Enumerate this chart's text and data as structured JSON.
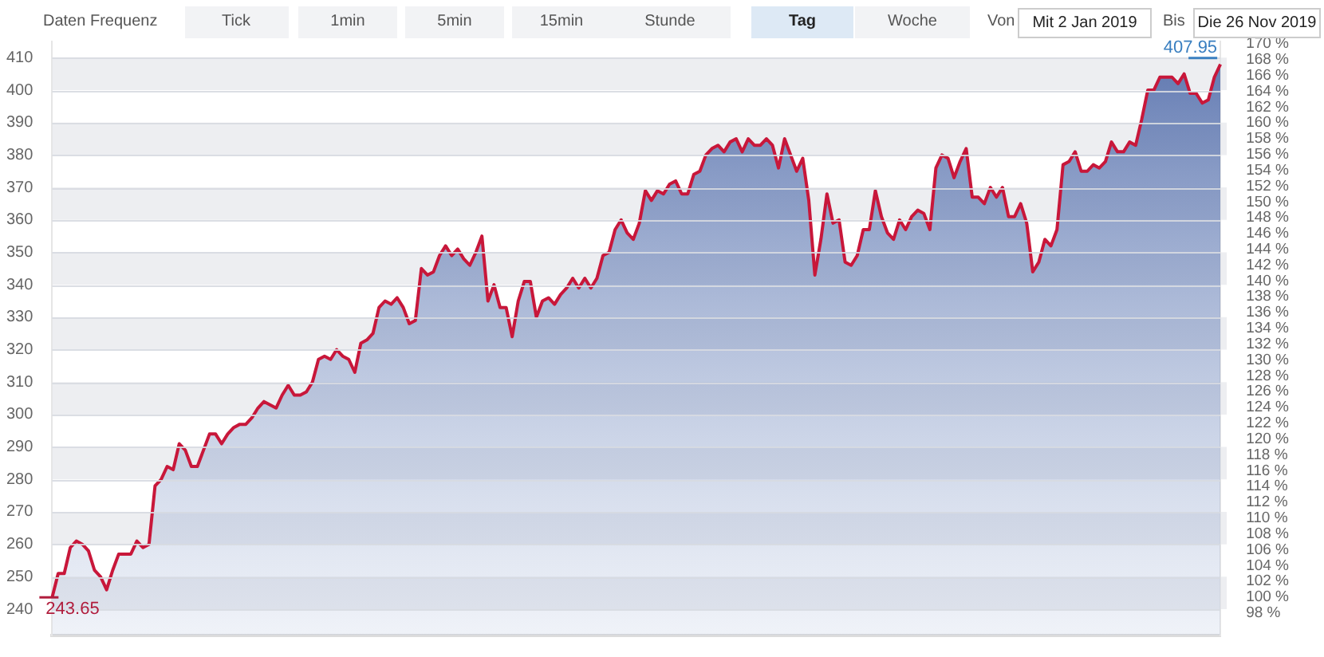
{
  "chart_data": [
    {
      "type": "area",
      "categories": [
        null,
        null,
        null,
        null,
        null,
        null,
        null,
        null,
        null,
        null,
        null,
        null,
        null,
        null,
        null,
        null,
        null,
        null,
        null,
        null,
        null,
        null,
        null,
        null,
        null,
        null,
        null,
        null,
        null,
        null,
        null,
        null,
        null,
        null,
        null,
        null,
        null,
        null,
        null,
        null,
        null,
        null,
        null,
        null,
        null,
        null,
        null,
        null,
        null,
        null,
        null,
        null,
        null,
        null,
        null,
        null,
        null,
        null,
        null,
        null,
        null,
        null,
        null,
        null,
        null,
        null,
        null,
        null,
        null,
        null,
        null,
        null,
        null,
        null,
        null,
        null,
        null,
        null,
        null,
        null,
        null,
        null,
        null,
        null,
        null,
        null,
        null,
        null,
        null,
        null,
        null,
        null,
        null,
        null,
        null,
        null,
        null,
        null,
        null,
        null,
        null,
        null,
        null,
        null,
        null,
        null,
        null,
        null,
        null,
        null,
        null,
        null,
        null,
        null,
        null,
        null,
        null,
        null,
        null,
        null,
        null,
        null,
        null,
        null,
        null,
        null,
        null,
        null,
        null,
        null,
        null,
        null,
        null,
        null,
        null,
        null,
        null,
        null,
        null,
        null,
        null,
        null,
        null,
        null,
        null,
        null,
        null,
        null,
        null,
        null,
        null,
        null,
        null,
        null,
        null,
        null,
        null,
        null,
        null,
        null,
        null,
        null,
        null,
        null,
        null,
        null,
        null,
        null,
        null,
        null,
        null,
        null,
        null,
        null,
        null,
        null,
        null,
        null,
        null,
        null,
        null,
        null,
        null,
        null,
        null,
        null,
        null,
        null,
        null,
        null,
        null,
        null,
        null,
        null
      ],
      "series": [
        {
          "color": "#c8173a",
          "values": [
            243.65,
            251,
            251,
            259,
            261,
            260,
            258,
            252,
            250,
            246,
            252,
            257,
            257,
            257,
            261,
            259,
            260,
            278,
            280,
            284,
            283,
            291,
            289,
            284,
            284,
            289,
            294,
            294,
            291,
            294,
            296,
            297,
            297,
            299,
            302,
            304,
            303,
            302,
            306,
            309,
            306,
            306,
            307,
            310,
            317,
            318,
            317,
            320,
            318,
            317,
            313,
            322,
            323,
            325,
            333,
            335,
            334,
            336,
            333,
            328,
            329,
            345,
            343,
            344,
            349,
            352,
            349,
            351,
            348,
            346,
            350,
            355,
            335,
            340,
            333,
            333,
            324,
            335,
            341,
            341,
            330,
            335,
            336,
            334,
            337,
            339,
            342,
            339,
            342,
            339,
            342,
            349,
            350,
            357,
            360,
            356,
            354,
            359,
            369,
            366,
            369,
            368,
            371,
            372,
            368,
            368,
            374,
            375,
            380,
            382,
            383,
            381,
            384,
            385,
            381,
            385,
            383,
            383,
            385,
            383,
            376,
            385,
            380,
            375,
            379,
            366,
            343,
            354,
            368,
            359,
            360,
            347,
            346,
            349,
            357,
            357,
            369,
            361,
            356,
            354,
            360,
            357,
            361,
            363,
            362,
            357,
            376,
            380,
            379,
            373,
            378,
            382,
            367,
            367,
            365,
            370,
            367,
            370,
            361,
            361,
            365,
            359,
            344,
            347,
            354,
            352,
            357,
            377,
            378,
            381,
            375,
            375,
            377,
            376,
            378,
            384,
            381,
            381,
            384,
            383,
            391,
            400,
            400,
            404,
            404,
            404,
            402,
            405,
            399,
            399,
            396,
            397,
            404,
            407.95
          ],
          "value_labels": [
            "243.65",
            null,
            null,
            null,
            null,
            null,
            null,
            null,
            null,
            null,
            null,
            null,
            null,
            null,
            null,
            null,
            null,
            null,
            null,
            null,
            null,
            null,
            null,
            null,
            null,
            null,
            null,
            null,
            null,
            null,
            null,
            null,
            null,
            null,
            null,
            null,
            null,
            null,
            null,
            null,
            null,
            null,
            null,
            null,
            null,
            null,
            null,
            null,
            null,
            null,
            null,
            null,
            null,
            null,
            null,
            null,
            null,
            null,
            null,
            null,
            null,
            null,
            null,
            null,
            null,
            null,
            null,
            null,
            null,
            null,
            null,
            null,
            null,
            null,
            null,
            null,
            null,
            null,
            null,
            null,
            null,
            null,
            null,
            null,
            null,
            null,
            null,
            null,
            null,
            null,
            null,
            null,
            null,
            null,
            null,
            null,
            null,
            null,
            null,
            null,
            null,
            null,
            null,
            null,
            null,
            null,
            null,
            null,
            null,
            null,
            null,
            null,
            null,
            null,
            null,
            null,
            null,
            null,
            null,
            null,
            null,
            null,
            null,
            null,
            null,
            null,
            null,
            null,
            null,
            null,
            null,
            null,
            null,
            null,
            null,
            null,
            null,
            null,
            null,
            null,
            null,
            null,
            null,
            null,
            null,
            null,
            null,
            null,
            null,
            null,
            null,
            null,
            null,
            null,
            null,
            null,
            null,
            null,
            null,
            null,
            null,
            null,
            null,
            null,
            null,
            null,
            null,
            null,
            null,
            null,
            null,
            null,
            null,
            null,
            null,
            null,
            null,
            null,
            null,
            null,
            null,
            null,
            null,
            null,
            null,
            null,
            null,
            null,
            null,
            null,
            null,
            null,
            null,
            "407.95"
          ]
        }
      ],
      "ylim": [
        232,
        415
      ],
      "yticks": [
        240,
        250,
        260,
        270,
        280,
        290,
        300,
        310,
        320,
        330,
        340,
        350,
        360,
        370,
        380,
        390,
        400,
        410
      ],
      "y2lim": [
        95.2,
        170.3
      ],
      "y2ticks": [
        {
          "value": 98,
          "label": "98 %"
        },
        {
          "value": 100,
          "label": "100 %"
        },
        {
          "value": 102,
          "label": "102 %"
        },
        {
          "value": 104,
          "label": "104 %"
        },
        {
          "value": 106,
          "label": "106 %"
        },
        {
          "value": 108,
          "label": "108 %"
        },
        {
          "value": 110,
          "label": "110 %"
        },
        {
          "value": 112,
          "label": "112 %"
        },
        {
          "value": 114,
          "label": "114 %"
        },
        {
          "value": 116,
          "label": "116 %"
        },
        {
          "value": 118,
          "label": "118 %"
        },
        {
          "value": 120,
          "label": "120 %"
        },
        {
          "value": 122,
          "label": "122 %"
        },
        {
          "value": 124,
          "label": "124 %"
        },
        {
          "value": 126,
          "label": "126 %"
        },
        {
          "value": 128,
          "label": "128 %"
        },
        {
          "value": 130,
          "label": "130 %"
        },
        {
          "value": 132,
          "label": "132 %"
        },
        {
          "value": 134,
          "label": "134 %"
        },
        {
          "value": 136,
          "label": "136 %"
        },
        {
          "value": 138,
          "label": "138 %"
        },
        {
          "value": 140,
          "label": "140 %"
        },
        {
          "value": 142,
          "label": "142 %"
        },
        {
          "value": 144,
          "label": "144 %"
        },
        {
          "value": 146,
          "label": "146 %"
        },
        {
          "value": 148,
          "label": "148 %"
        },
        {
          "value": 150,
          "label": "150 %"
        },
        {
          "value": 152,
          "label": "152 %"
        },
        {
          "value": 154,
          "label": "154 %"
        },
        {
          "value": 156,
          "label": "156 %"
        },
        {
          "value": 158,
          "label": "158 %"
        },
        {
          "value": 160,
          "label": "160 %"
        },
        {
          "value": 162,
          "label": "162 %"
        },
        {
          "value": 164,
          "label": "164 %"
        },
        {
          "value": 166,
          "label": "166 %"
        },
        {
          "value": 168,
          "label": "168 %"
        },
        {
          "value": 170,
          "label": "170 %"
        }
      ],
      "grid": "y",
      "legend": false,
      "marker": "none"
    },
    {
      "type": "other",
      "annotations": [
        "Daten Frequenz",
        "Tick",
        "1min",
        "5min",
        "15min",
        "Stunde",
        "Tag",
        "Woche",
        "Von",
        "Mit 2 Jan 2019",
        "Bis",
        "Die 26 Nov 2019"
      ]
    }
  ]
}
